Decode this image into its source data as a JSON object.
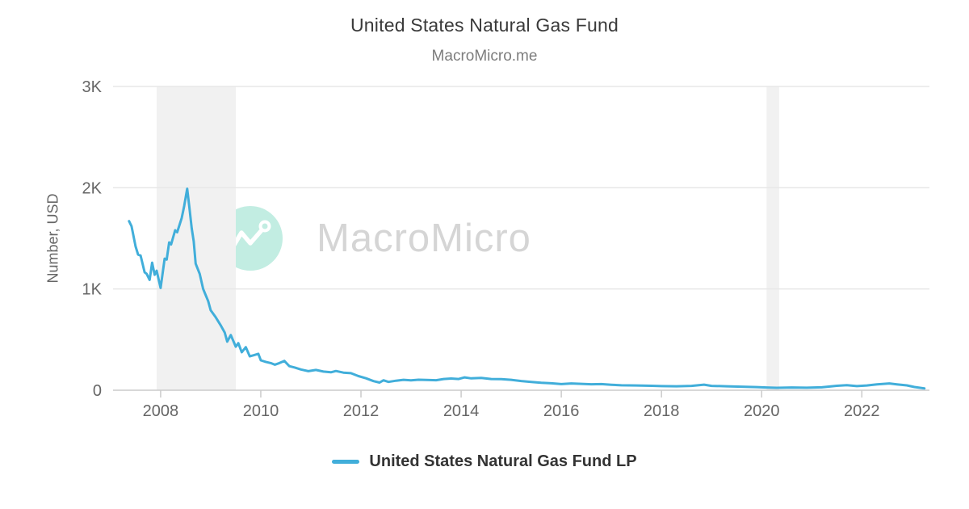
{
  "header": {
    "title": "United States Natural Gas Fund",
    "subtitle": "MacroMicro.me"
  },
  "watermark": {
    "text": "MacroMicro"
  },
  "y_axis": {
    "title": "Number, USD"
  },
  "legend": {
    "items": [
      {
        "label": "United States Natural Gas Fund LP",
        "color": "#41AEDA"
      }
    ]
  },
  "colors": {
    "series_blue": "#41AEDA",
    "grid": "#E7E7E7",
    "axis_line": "#CBCBCB",
    "axis_text": "#666666",
    "band": "#F1F1F1",
    "watermark_circle": "#BDECDF",
    "watermark_text": "#D5D5D5"
  },
  "chart_data": {
    "type": "line",
    "title": "United States Natural Gas Fund",
    "subtitle": "MacroMicro.me",
    "xlabel": "",
    "ylabel": "Number, USD",
    "xlim": [
      2007.05,
      2023.35
    ],
    "ylim": [
      0,
      3000
    ],
    "grid": "horizontal",
    "legend_position": "bottom",
    "x_ticks": [
      {
        "v": 2008,
        "label": "2008"
      },
      {
        "v": 2010,
        "label": "2010"
      },
      {
        "v": 2012,
        "label": "2012"
      },
      {
        "v": 2014,
        "label": "2014"
      },
      {
        "v": 2016,
        "label": "2016"
      },
      {
        "v": 2018,
        "label": "2018"
      },
      {
        "v": 2020,
        "label": "2020"
      },
      {
        "v": 2022,
        "label": "2022"
      }
    ],
    "y_ticks": [
      {
        "v": 0,
        "label": "0"
      },
      {
        "v": 1000,
        "label": "1K"
      },
      {
        "v": 2000,
        "label": "2K"
      },
      {
        "v": 3000,
        "label": "3K"
      }
    ],
    "recession_bands": [
      [
        2007.92,
        2009.5
      ],
      [
        2020.1,
        2020.35
      ]
    ],
    "series": [
      {
        "name": "United States Natural Gas Fund LP",
        "color": "#41AEDA",
        "points": [
          [
            2007.37,
            1670
          ],
          [
            2007.42,
            1620
          ],
          [
            2007.5,
            1420
          ],
          [
            2007.55,
            1340
          ],
          [
            2007.6,
            1330
          ],
          [
            2007.68,
            1165
          ],
          [
            2007.72,
            1150
          ],
          [
            2007.78,
            1090
          ],
          [
            2007.83,
            1260
          ],
          [
            2007.88,
            1140
          ],
          [
            2007.92,
            1180
          ],
          [
            2008.0,
            1010
          ],
          [
            2008.08,
            1300
          ],
          [
            2008.12,
            1290
          ],
          [
            2008.17,
            1460
          ],
          [
            2008.21,
            1440
          ],
          [
            2008.29,
            1580
          ],
          [
            2008.33,
            1560
          ],
          [
            2008.42,
            1700
          ],
          [
            2008.47,
            1820
          ],
          [
            2008.53,
            1990
          ],
          [
            2008.58,
            1780
          ],
          [
            2008.62,
            1600
          ],
          [
            2008.66,
            1470
          ],
          [
            2008.7,
            1250
          ],
          [
            2008.78,
            1150
          ],
          [
            2008.85,
            1000
          ],
          [
            2008.95,
            880
          ],
          [
            2009.0,
            790
          ],
          [
            2009.1,
            720
          ],
          [
            2009.2,
            640
          ],
          [
            2009.28,
            570
          ],
          [
            2009.33,
            480
          ],
          [
            2009.4,
            545
          ],
          [
            2009.5,
            430
          ],
          [
            2009.55,
            465
          ],
          [
            2009.62,
            375
          ],
          [
            2009.7,
            425
          ],
          [
            2009.78,
            335
          ],
          [
            2009.85,
            345
          ],
          [
            2009.95,
            360
          ],
          [
            2010.0,
            295
          ],
          [
            2010.1,
            280
          ],
          [
            2010.2,
            268
          ],
          [
            2010.28,
            252
          ],
          [
            2010.37,
            268
          ],
          [
            2010.47,
            290
          ],
          [
            2010.57,
            238
          ],
          [
            2010.68,
            224
          ],
          [
            2010.8,
            205
          ],
          [
            2010.95,
            188
          ],
          [
            2011.1,
            200
          ],
          [
            2011.25,
            184
          ],
          [
            2011.4,
            177
          ],
          [
            2011.5,
            190
          ],
          [
            2011.65,
            174
          ],
          [
            2011.8,
            168
          ],
          [
            2011.95,
            140
          ],
          [
            2012.1,
            118
          ],
          [
            2012.25,
            90
          ],
          [
            2012.37,
            76
          ],
          [
            2012.45,
            98
          ],
          [
            2012.55,
            82
          ],
          [
            2012.7,
            94
          ],
          [
            2012.85,
            103
          ],
          [
            2013.0,
            97
          ],
          [
            2013.15,
            104
          ],
          [
            2013.3,
            101
          ],
          [
            2013.5,
            99
          ],
          [
            2013.65,
            111
          ],
          [
            2013.8,
            116
          ],
          [
            2013.95,
            111
          ],
          [
            2014.07,
            127
          ],
          [
            2014.2,
            117
          ],
          [
            2014.4,
            121
          ],
          [
            2014.6,
            111
          ],
          [
            2014.8,
            109
          ],
          [
            2015.0,
            103
          ],
          [
            2015.2,
            91
          ],
          [
            2015.4,
            82
          ],
          [
            2015.6,
            74
          ],
          [
            2015.8,
            69
          ],
          [
            2016.0,
            61
          ],
          [
            2016.2,
            67
          ],
          [
            2016.4,
            63
          ],
          [
            2016.6,
            59
          ],
          [
            2016.8,
            61
          ],
          [
            2017.0,
            54
          ],
          [
            2017.2,
            49
          ],
          [
            2017.5,
            47
          ],
          [
            2017.8,
            44
          ],
          [
            2018.0,
            41
          ],
          [
            2018.3,
            39
          ],
          [
            2018.6,
            43
          ],
          [
            2018.85,
            55
          ],
          [
            2019.0,
            43
          ],
          [
            2019.3,
            39
          ],
          [
            2019.6,
            35
          ],
          [
            2019.9,
            31
          ],
          [
            2020.1,
            27
          ],
          [
            2020.3,
            24
          ],
          [
            2020.6,
            27
          ],
          [
            2020.9,
            25
          ],
          [
            2021.2,
            29
          ],
          [
            2021.5,
            44
          ],
          [
            2021.7,
            50
          ],
          [
            2021.9,
            41
          ],
          [
            2022.1,
            47
          ],
          [
            2022.3,
            58
          ],
          [
            2022.55,
            67
          ],
          [
            2022.7,
            58
          ],
          [
            2022.9,
            48
          ],
          [
            2023.05,
            32
          ],
          [
            2023.25,
            18
          ]
        ]
      }
    ]
  }
}
